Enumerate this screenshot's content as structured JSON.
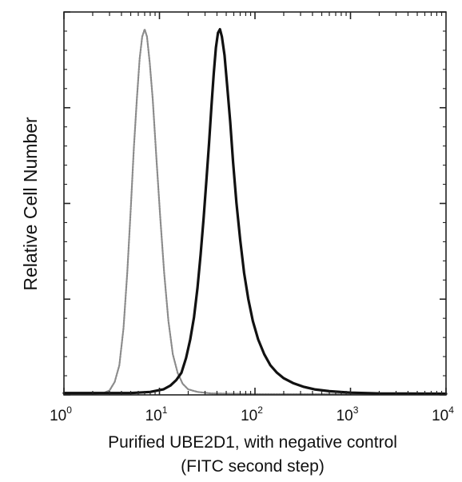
{
  "chart_data": {
    "type": "line",
    "title": "",
    "xlabel": "Purified UBE2D1, with negative control",
    "xlabel_line2": "(FITC second step)",
    "ylabel": "Relative Cell Number",
    "x_scale": "log",
    "xlim": [
      1,
      10000
    ],
    "ylim": [
      0,
      100
    ],
    "grid": false,
    "legend": "none",
    "x_ticks": [
      {
        "base": "10",
        "exp": "0",
        "value": 1
      },
      {
        "base": "10",
        "exp": "1",
        "value": 10
      },
      {
        "base": "10",
        "exp": "2",
        "value": 100
      },
      {
        "base": "10",
        "exp": "3",
        "value": 1000
      },
      {
        "base": "10",
        "exp": "4",
        "value": 10000
      }
    ],
    "series": [
      {
        "style": "light-dotted",
        "color": "#8a8a8a",
        "points": [
          [
            1.0,
            0.3
          ],
          [
            2.0,
            0.3
          ],
          [
            2.6,
            0.5
          ],
          [
            3.0,
            1.2
          ],
          [
            3.4,
            3.5
          ],
          [
            3.8,
            8
          ],
          [
            4.2,
            18
          ],
          [
            4.6,
            33
          ],
          [
            5.0,
            50
          ],
          [
            5.4,
            67
          ],
          [
            5.8,
            80
          ],
          [
            6.2,
            91
          ],
          [
            6.6,
            97
          ],
          [
            7.0,
            99
          ],
          [
            7.4,
            97
          ],
          [
            7.9,
            90
          ],
          [
            8.5,
            80
          ],
          [
            9.3,
            64
          ],
          [
            10.2,
            48
          ],
          [
            11.2,
            33
          ],
          [
            12.4,
            20
          ],
          [
            13.8,
            11
          ],
          [
            15.5,
            6
          ],
          [
            17.5,
            3
          ],
          [
            20,
            1.5
          ],
          [
            25,
            0.8
          ],
          [
            35,
            0.4
          ],
          [
            100,
            0.2
          ],
          [
            10000,
            0.2
          ]
        ]
      },
      {
        "style": "dark-solid",
        "color": "#111111",
        "points": [
          [
            1.0,
            0.5
          ],
          [
            5,
            0.5
          ],
          [
            8,
            0.8
          ],
          [
            11,
            1.5
          ],
          [
            13,
            2.5
          ],
          [
            15,
            4
          ],
          [
            17,
            6
          ],
          [
            19,
            10
          ],
          [
            21,
            15
          ],
          [
            23,
            21
          ],
          [
            25,
            29
          ],
          [
            27,
            38
          ],
          [
            29,
            48
          ],
          [
            31,
            58
          ],
          [
            33,
            68
          ],
          [
            35,
            78
          ],
          [
            37,
            87
          ],
          [
            39,
            94
          ],
          [
            41,
            98
          ],
          [
            43,
            99
          ],
          [
            45,
            97
          ],
          [
            48,
            92
          ],
          [
            51,
            84
          ],
          [
            55,
            74
          ],
          [
            59,
            63
          ],
          [
            64,
            52
          ],
          [
            70,
            42
          ],
          [
            77,
            33
          ],
          [
            85,
            26
          ],
          [
            95,
            20
          ],
          [
            108,
            15
          ],
          [
            125,
            11
          ],
          [
            145,
            8
          ],
          [
            170,
            6
          ],
          [
            200,
            4.5
          ],
          [
            250,
            3.2
          ],
          [
            320,
            2.2
          ],
          [
            420,
            1.5
          ],
          [
            600,
            1.0
          ],
          [
            1000,
            0.6
          ],
          [
            2000,
            0.4
          ],
          [
            10000,
            0.3
          ]
        ]
      }
    ]
  }
}
